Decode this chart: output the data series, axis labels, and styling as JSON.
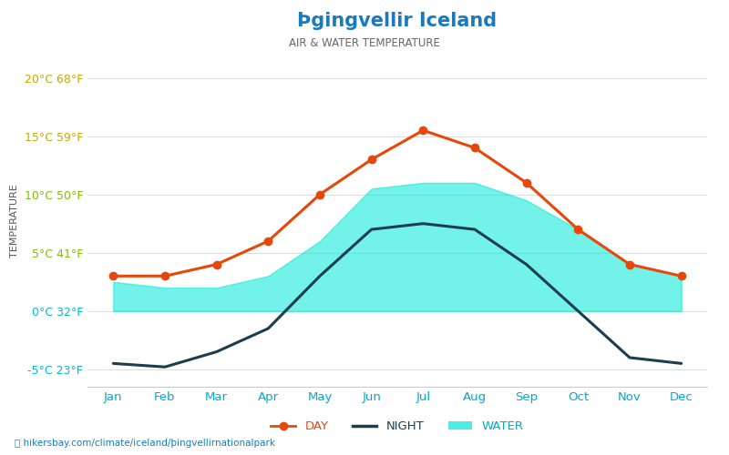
{
  "title": "Þgingvellir Iceland",
  "subtitle": "AIR & WATER TEMPERATURE",
  "months": [
    "Jan",
    "Feb",
    "Mar",
    "Apr",
    "May",
    "Jun",
    "Jul",
    "Aug",
    "Sep",
    "Oct",
    "Nov",
    "Dec"
  ],
  "day_temps": [
    3.0,
    3.0,
    4.0,
    6.0,
    10.0,
    13.0,
    15.5,
    14.0,
    11.0,
    7.0,
    4.0,
    3.0
  ],
  "night_temps": [
    -4.5,
    -4.8,
    -3.5,
    -1.5,
    3.0,
    7.0,
    7.5,
    7.0,
    4.0,
    0.0,
    -4.0,
    -4.5
  ],
  "water_top": [
    2.5,
    2.0,
    2.0,
    3.0,
    6.0,
    10.5,
    11.0,
    11.0,
    9.5,
    7.0,
    4.0,
    3.0
  ],
  "water_bottom": [
    0,
    0,
    0,
    0,
    0,
    0,
    0,
    0,
    0,
    0,
    0,
    0
  ],
  "ylim": [
    -6.5,
    22
  ],
  "yticks": [
    -5,
    0,
    5,
    10,
    15,
    20
  ],
  "ytick_labels": [
    "-5°C 23°F",
    "0°C 32°F",
    "5°C 41°F",
    "10°C 50°F",
    "15°C 59°F",
    "20°C 68°F"
  ],
  "ytick_colors": [
    "#00bcd4",
    "#00bcd4",
    "#7bc200",
    "#7bc200",
    "#c8a800",
    "#c8a800"
  ],
  "day_color": "#e8470a",
  "night_color": "#1c3d50",
  "water_color": "#00e8d8",
  "water_alpha": 0.55,
  "title_color": "#1a7abf",
  "subtitle_color": "#666666",
  "axis_label_color": "#555555",
  "month_color": "#00aacc",
  "background_color": "#ffffff",
  "grid_color": "#dddddd",
  "footer_text": "hikersbay.com/climate/iceland/þingvellirnationalpark",
  "ylabel": "TEMPERATURE",
  "legend_day_color": "#e8470a",
  "legend_night_color": "#1c3d50",
  "legend_water_color": "#00e8d8"
}
